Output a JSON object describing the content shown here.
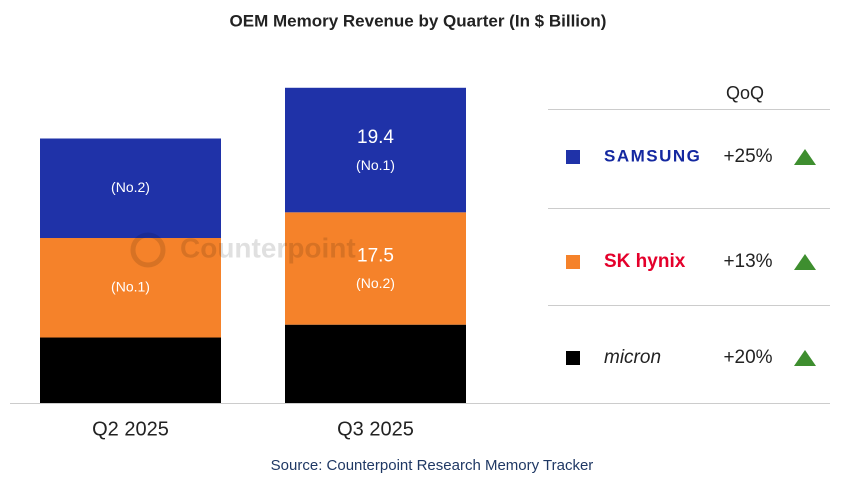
{
  "chart_data": {
    "type": "stacked_bar",
    "title": "OEM Memory Revenue by Quarter (In $ Billion)",
    "categories": [
      "Q2 2025",
      "Q3 2025"
    ],
    "series": [
      {
        "name": "micron",
        "color": "#000000",
        "values": [
          10.2,
          12.2
        ],
        "qoq": "+20%"
      },
      {
        "name": "SK hynix",
        "color": "#f5822a",
        "values": [
          15.5,
          17.5
        ],
        "value_labels": [
          null,
          "17.5"
        ],
        "ranks": [
          "(No.1)",
          "(No.2)"
        ],
        "qoq": "+13%"
      },
      {
        "name": "SAMSUNG",
        "color": "#1f32a8",
        "values": [
          15.5,
          19.4
        ],
        "value_labels": [
          null,
          "19.4"
        ],
        "ranks": [
          "(No.2)",
          "(No.1)"
        ],
        "qoq": "+25%"
      }
    ],
    "legend_header": "QoQ",
    "watermark": "Counterpoint",
    "source": "Source: Counterpoint Research Memory Tracker"
  }
}
